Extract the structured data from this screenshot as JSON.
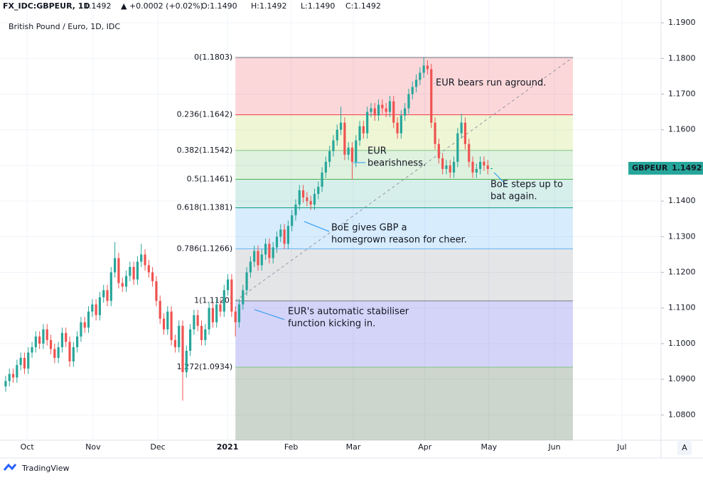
{
  "chart_data": {
    "type": "candlestick",
    "header": {
      "symbol": "FX_IDC:GBPEUR, 1D",
      "last": "1.1492",
      "change": "▲ +0.0002 (+0.02%)",
      "o": "O:1.1490",
      "h": "H:1.1492",
      "l": "L:1.1490",
      "c": "C:1.1492"
    },
    "subtitle": "British Pound / Euro, 1D, IDC",
    "up_color": "#26a69a",
    "down_color": "#ef5350",
    "open": [
      1.088,
      1.0895,
      1.0915,
      1.0905,
      1.094,
      1.096,
      1.093,
      1.0975,
      1.099,
      1.102,
      1.1,
      1.104,
      1.101,
      1.0985,
      1.096,
      1.099,
      1.103,
      1.1005,
      1.095,
      1.099,
      1.102,
      1.106,
      1.1045,
      1.109,
      1.111,
      1.108,
      1.113,
      1.115,
      1.112,
      1.12,
      1.124,
      1.117,
      1.116,
      1.119,
      1.1215,
      1.118,
      1.123,
      1.125,
      1.122,
      1.12,
      1.1175,
      1.112,
      1.107,
      1.104,
      1.109,
      1.101,
      1.099,
      1.105,
      1.092,
      1.098,
      1.104,
      1.108,
      1.105,
      1.101,
      1.104,
      1.11,
      1.106,
      1.111,
      1.109,
      1.115,
      1.118,
      1.109,
      1.106,
      1.111,
      1.115,
      1.12,
      1.123,
      1.126,
      1.122,
      1.125,
      1.128,
      1.124,
      1.127,
      1.13,
      1.132,
      1.128,
      1.133,
      1.136,
      1.139,
      1.143,
      1.141,
      1.14,
      1.139,
      1.142,
      1.144,
      1.148,
      1.151,
      1.154,
      1.157,
      1.16,
      1.162,
      1.153,
      1.155,
      1.151,
      1.157,
      1.161,
      1.159,
      1.165,
      1.166,
      1.164,
      1.167,
      1.166,
      1.165,
      1.168,
      1.162,
      1.159,
      1.164,
      1.166,
      1.17,
      1.172,
      1.174,
      1.176,
      1.178,
      1.177,
      1.162,
      1.156,
      1.152,
      1.149,
      1.15,
      1.148,
      1.151,
      1.159,
      1.162,
      1.156,
      1.151,
      1.148,
      1.149,
      1.151,
      1.15,
      1.149
    ],
    "high": [
      1.091,
      1.093,
      1.093,
      1.0955,
      1.0975,
      1.0975,
      1.099,
      1.1005,
      1.1035,
      1.1035,
      1.1055,
      1.1055,
      1.1025,
      1.1,
      1.1005,
      1.1045,
      1.1045,
      1.102,
      1.1005,
      1.1035,
      1.1075,
      1.1075,
      1.1105,
      1.1125,
      1.1125,
      1.1145,
      1.1165,
      1.1165,
      1.1215,
      1.1285,
      1.1255,
      1.1185,
      1.1205,
      1.123,
      1.123,
      1.1245,
      1.128,
      1.1265,
      1.1235,
      1.1215,
      1.119,
      1.1135,
      1.1085,
      1.1105,
      1.1105,
      1.1025,
      1.1065,
      1.1065,
      1.0995,
      1.1055,
      1.1095,
      1.1095,
      1.1065,
      1.1055,
      1.1115,
      1.1115,
      1.1125,
      1.1125,
      1.1165,
      1.1195,
      1.1195,
      1.1105,
      1.1125,
      1.1165,
      1.1215,
      1.1245,
      1.1275,
      1.1275,
      1.1265,
      1.1295,
      1.1295,
      1.1285,
      1.1315,
      1.1335,
      1.1335,
      1.1345,
      1.1375,
      1.1405,
      1.1445,
      1.1445,
      1.1425,
      1.1415,
      1.1435,
      1.1455,
      1.1495,
      1.1525,
      1.1555,
      1.1585,
      1.1615,
      1.1665,
      1.1635,
      1.1565,
      1.1565,
      1.1585,
      1.1625,
      1.1625,
      1.1665,
      1.1675,
      1.1675,
      1.1685,
      1.1685,
      1.1675,
      1.1695,
      1.1695,
      1.1635,
      1.1655,
      1.1675,
      1.1715,
      1.1735,
      1.1755,
      1.1775,
      1.1803,
      1.1795,
      1.1785,
      1.1635,
      1.1575,
      1.1535,
      1.1515,
      1.1515,
      1.1525,
      1.1605,
      1.1645,
      1.1635,
      1.1575,
      1.1525,
      1.1505,
      1.1525,
      1.1525,
      1.1515,
      1.1492
    ],
    "low": [
      1.0865,
      1.088,
      1.089,
      1.089,
      1.0925,
      1.0915,
      1.0915,
      1.096,
      1.0975,
      1.0985,
      1.0985,
      1.0995,
      1.097,
      1.0945,
      1.0945,
      1.0975,
      1.099,
      1.0935,
      1.0935,
      1.0975,
      1.1005,
      1.103,
      1.103,
      1.1075,
      1.1065,
      1.1065,
      1.1115,
      1.1105,
      1.1105,
      1.1185,
      1.1155,
      1.1145,
      1.1145,
      1.1175,
      1.1165,
      1.1165,
      1.1215,
      1.1205,
      1.1185,
      1.116,
      1.1105,
      1.1055,
      1.1025,
      1.1025,
      1.0995,
      1.0975,
      1.0975,
      1.084,
      1.0905,
      1.0965,
      1.1025,
      1.1035,
      1.0995,
      1.0995,
      1.1025,
      1.1045,
      1.1045,
      1.1075,
      1.1075,
      1.1135,
      1.1075,
      1.102,
      1.1045,
      1.1095,
      1.1135,
      1.1185,
      1.1215,
      1.1205,
      1.1205,
      1.1235,
      1.1225,
      1.1225,
      1.1255,
      1.1285,
      1.1265,
      1.1265,
      1.1315,
      1.1345,
      1.1375,
      1.1395,
      1.1385,
      1.1375,
      1.1375,
      1.1405,
      1.1425,
      1.1465,
      1.1495,
      1.1525,
      1.1555,
      1.1585,
      1.1515,
      1.1515,
      1.146,
      1.1495,
      1.1555,
      1.1575,
      1.1575,
      1.1635,
      1.1625,
      1.1625,
      1.1645,
      1.1635,
      1.1635,
      1.1605,
      1.1575,
      1.1575,
      1.1625,
      1.1645,
      1.1685,
      1.1705,
      1.1725,
      1.1745,
      1.1755,
      1.1605,
      1.1545,
      1.1505,
      1.1475,
      1.1475,
      1.1465,
      1.1465,
      1.1495,
      1.1575,
      1.1545,
      1.1495,
      1.1465,
      1.1465,
      1.1475,
      1.1485,
      1.1475,
      1.149
    ],
    "close": [
      1.0895,
      1.0915,
      1.0905,
      1.094,
      1.096,
      1.093,
      1.0975,
      1.099,
      1.102,
      1.1,
      1.104,
      1.101,
      1.0985,
      1.096,
      1.099,
      1.103,
      1.1005,
      1.095,
      1.099,
      1.102,
      1.106,
      1.1045,
      1.109,
      1.111,
      1.108,
      1.113,
      1.115,
      1.112,
      1.12,
      1.124,
      1.117,
      1.116,
      1.119,
      1.1215,
      1.118,
      1.123,
      1.125,
      1.122,
      1.12,
      1.1175,
      1.112,
      1.107,
      1.104,
      1.109,
      1.101,
      1.099,
      1.105,
      1.092,
      1.098,
      1.104,
      1.108,
      1.105,
      1.101,
      1.104,
      1.11,
      1.106,
      1.111,
      1.109,
      1.115,
      1.118,
      1.109,
      1.106,
      1.111,
      1.115,
      1.12,
      1.123,
      1.126,
      1.122,
      1.125,
      1.128,
      1.124,
      1.127,
      1.13,
      1.132,
      1.128,
      1.133,
      1.136,
      1.139,
      1.143,
      1.141,
      1.14,
      1.139,
      1.142,
      1.144,
      1.148,
      1.151,
      1.154,
      1.157,
      1.16,
      1.162,
      1.153,
      1.155,
      1.151,
      1.157,
      1.161,
      1.159,
      1.165,
      1.166,
      1.164,
      1.167,
      1.166,
      1.165,
      1.168,
      1.162,
      1.159,
      1.164,
      1.166,
      1.17,
      1.172,
      1.174,
      1.176,
      1.178,
      1.177,
      1.162,
      1.156,
      1.152,
      1.149,
      1.15,
      1.148,
      1.151,
      1.159,
      1.162,
      1.156,
      1.151,
      1.148,
      1.149,
      1.151,
      1.15,
      1.149,
      1.1492
    ],
    "xlim": [
      -1.5,
      174
    ],
    "xticks": [
      {
        "value": 5.7,
        "label": "Oct"
      },
      {
        "value": 23.2,
        "label": "Nov"
      },
      {
        "value": 40.4,
        "label": "Dec"
      },
      {
        "value": 58.9,
        "label": "2021"
      },
      {
        "value": 75.8,
        "label": "Feb"
      },
      {
        "value": 92.3,
        "label": "Mar"
      },
      {
        "value": 111.3,
        "label": "Apr"
      },
      {
        "value": 128.3,
        "label": "May"
      },
      {
        "value": 145.7,
        "label": "Jun"
      },
      {
        "value": 163.6,
        "label": "Jul"
      }
    ],
    "ylim": [
      1.0729,
      1.1964
    ],
    "yticks": [
      {
        "value": 1.08,
        "label": "1.0800"
      },
      {
        "value": 1.09,
        "label": "1.0900"
      },
      {
        "value": 1.1,
        "label": "1.1000"
      },
      {
        "value": 1.11,
        "label": "1.1100"
      },
      {
        "value": 1.12,
        "label": "1.1200"
      },
      {
        "value": 1.13,
        "label": "1.1300"
      },
      {
        "value": 1.14,
        "label": "1.1400"
      },
      {
        "value": 1.15,
        "label": "1.1500"
      },
      {
        "value": 1.16,
        "label": "1.1600"
      },
      {
        "value": 1.17,
        "label": "1.1700"
      },
      {
        "value": 1.18,
        "label": "1.1800"
      },
      {
        "value": 1.19,
        "label": "1.1900"
      }
    ],
    "grid": true,
    "fib_range": [
      61,
      150.6
    ],
    "fib_levels": [
      {
        "label": "0(1.1803)",
        "value": 1.1803,
        "color": "#787b86",
        "fill": "rgba(242,54,69,0.2)"
      },
      {
        "label": "0.236(1.1642)",
        "value": 1.1642,
        "color": "#f23645",
        "fill": "rgba(200,225,120,0.3)"
      },
      {
        "label": "0.382(1.1542)",
        "value": 1.1542,
        "color": "#81c784",
        "fill": "rgba(76,175,80,0.18)"
      },
      {
        "label": "0.5(1.1461)",
        "value": 1.1461,
        "color": "#4caf50",
        "fill": "rgba(8,153,129,0.16)"
      },
      {
        "label": "0.618(1.1381)",
        "value": 1.1381,
        "color": "#089981",
        "fill": "rgba(33,150,243,0.18)"
      },
      {
        "label": "0.786(1.1266)",
        "value": 1.1266,
        "color": "#64b5f6",
        "fill": "rgba(120,123,134,0.2)"
      },
      {
        "label": "1(1.1120)",
        "value": 1.112,
        "color": "#787b86",
        "fill": "rgba(99,99,230,0.28)"
      },
      {
        "label": "1.272(1.0934)",
        "value": 1.0934,
        "color": "#81c784",
        "fill": "rgba(90,120,90,0.3)"
      }
    ],
    "annotations": [
      [
        "EUR bears run aground."
      ],
      [
        "EUR",
        "bearishness."
      ],
      [
        "BoE steps up to",
        "bat again."
      ],
      [
        "BoE gives GBP a",
        "homegrown reason for cheer."
      ],
      [
        "EUR's automatic stabiliser",
        "function kicking in."
      ]
    ],
    "price_tag": {
      "symbol": "GBPEUR",
      "value": "1.1492"
    },
    "brand": "TradingView",
    "scale_button": "A"
  }
}
